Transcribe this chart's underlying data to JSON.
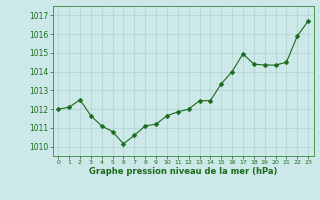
{
  "hours": [
    0,
    1,
    2,
    3,
    4,
    5,
    6,
    7,
    8,
    9,
    10,
    11,
    12,
    13,
    14,
    15,
    16,
    17,
    18,
    19,
    20,
    21,
    22,
    23
  ],
  "pressure": [
    1012.0,
    1012.1,
    1012.5,
    1011.65,
    1011.1,
    1010.8,
    1010.15,
    1010.6,
    1011.1,
    1011.2,
    1011.65,
    1011.85,
    1012.0,
    1012.45,
    1012.45,
    1013.35,
    1014.0,
    1014.95,
    1014.4,
    1014.35,
    1014.35,
    1014.5,
    1015.9,
    1016.7
  ],
  "line_color": "#1a6b1a",
  "marker_color": "#1a6b1a",
  "bg_color": "#cce8e8",
  "grid_color": "#b0d0d0",
  "xlabel": "Graphe pression niveau de la mer (hPa)",
  "xlabel_color": "#1a6b1a",
  "tick_color": "#1a6b1a",
  "ylim": [
    1009.5,
    1017.5
  ],
  "yticks": [
    1010,
    1011,
    1012,
    1013,
    1014,
    1015,
    1016,
    1017
  ],
  "xticks": [
    0,
    1,
    2,
    3,
    4,
    5,
    6,
    7,
    8,
    9,
    10,
    11,
    12,
    13,
    14,
    15,
    16,
    17,
    18,
    19,
    20,
    21,
    22,
    23
  ],
  "spine_color": "#3a8a3a",
  "figsize": [
    3.2,
    2.0
  ],
  "dpi": 100
}
